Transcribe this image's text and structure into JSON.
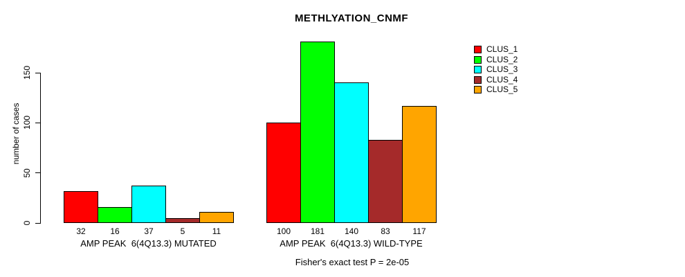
{
  "title": "METHLYATION_CNMF",
  "annotation": "Fisher's exact test P = 2e-05",
  "chart_data": {
    "type": "bar",
    "title": "METHLYATION_CNMF",
    "ylabel": "number of cases",
    "xlabel": "",
    "ylim": [
      0,
      190
    ],
    "yticks": [
      0,
      50,
      100,
      150
    ],
    "ytick_labels": [
      "0",
      "50",
      "100",
      "150"
    ],
    "grid": false,
    "bar_borders": true,
    "legend_position": "right",
    "categories": [
      "AMP PEAK  6(4Q13.3) MUTATED",
      "AMP PEAK  6(4Q13.3) WILD-TYPE"
    ],
    "series": [
      {
        "name": "CLUS_1",
        "color": "#ff0000",
        "values": [
          32,
          100
        ]
      },
      {
        "name": "CLUS_2",
        "color": "#00ff00",
        "values": [
          16,
          181
        ]
      },
      {
        "name": "CLUS_3",
        "color": "#00ffff",
        "values": [
          37,
          140
        ]
      },
      {
        "name": "CLUS_4",
        "color": "#a52a2a",
        "values": [
          5,
          83
        ]
      },
      {
        "name": "CLUS_5",
        "color": "#ffa500",
        "values": [
          11,
          117
        ]
      }
    ],
    "bar_value_labels": [
      [
        "32",
        "16",
        "37",
        "5",
        "11"
      ],
      [
        "100",
        "181",
        "140",
        "83",
        "117"
      ]
    ],
    "annotation": "Fisher's exact test P = 2e-05"
  }
}
